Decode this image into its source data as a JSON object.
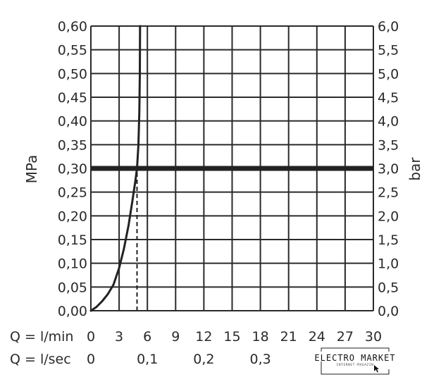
{
  "chart_data": {
    "type": "line",
    "left_axis": {
      "label": "MPa",
      "range": [
        0,
        0.6
      ],
      "ticks": [
        "0,00",
        "0,05",
        "0,10",
        "0,15",
        "0,20",
        "0,25",
        "0,30",
        "0,35",
        "0,40",
        "0,45",
        "0,50",
        "0,55",
        "0,60"
      ]
    },
    "right_axis": {
      "label": "bar",
      "range": [
        0,
        6
      ],
      "ticks": [
        "0,0",
        "0,5",
        "1,0",
        "1,5",
        "2,0",
        "2,5",
        "3,0",
        "3,5",
        "4,0",
        "4,5",
        "5,0",
        "5,5",
        "6,0"
      ]
    },
    "x_axis": {
      "range": [
        0,
        30
      ],
      "min_label": "Q = l/min",
      "min_ticks": [
        {
          "value": 0,
          "label": "0"
        },
        {
          "value": 3,
          "label": "3"
        },
        {
          "value": 6,
          "label": "6"
        },
        {
          "value": 9,
          "label": "9"
        },
        {
          "value": 12,
          "label": "12"
        },
        {
          "value": 15,
          "label": "15"
        },
        {
          "value": 18,
          "label": "18"
        },
        {
          "value": 21,
          "label": "21"
        },
        {
          "value": 24,
          "label": "24"
        },
        {
          "value": 27,
          "label": "27"
        },
        {
          "value": 30,
          "label": "30"
        }
      ],
      "sec_label": "Q = l/sec",
      "sec_ticks": [
        {
          "value": 0,
          "label": "0"
        },
        {
          "value": 6,
          "label": "0,1"
        },
        {
          "value": 12,
          "label": "0,2"
        },
        {
          "value": 18,
          "label": "0,3"
        }
      ]
    },
    "grid": true,
    "series": [
      {
        "color": "#222222",
        "points": [
          [
            0,
            0.0
          ],
          [
            0.6,
            0.008
          ],
          [
            1.2,
            0.02
          ],
          [
            1.8,
            0.035
          ],
          [
            2.4,
            0.055
          ],
          [
            3.0,
            0.09
          ],
          [
            3.5,
            0.13
          ],
          [
            4.0,
            0.18
          ],
          [
            4.4,
            0.23
          ],
          [
            4.7,
            0.27
          ],
          [
            4.9,
            0.3
          ],
          [
            5.05,
            0.35
          ],
          [
            5.15,
            0.42
          ],
          [
            5.2,
            0.5
          ],
          [
            5.22,
            0.6
          ]
        ]
      }
    ],
    "reference_line": {
      "y": 0.3,
      "color": "#222222"
    },
    "marker_line": {
      "x": 4.9,
      "from_y": 0,
      "to_y": 0.3
    }
  },
  "watermark": {
    "title": "ELECTRO MARKET",
    "subtitle": "INTERNET-MAGAZIN",
    "color": "#111111"
  }
}
